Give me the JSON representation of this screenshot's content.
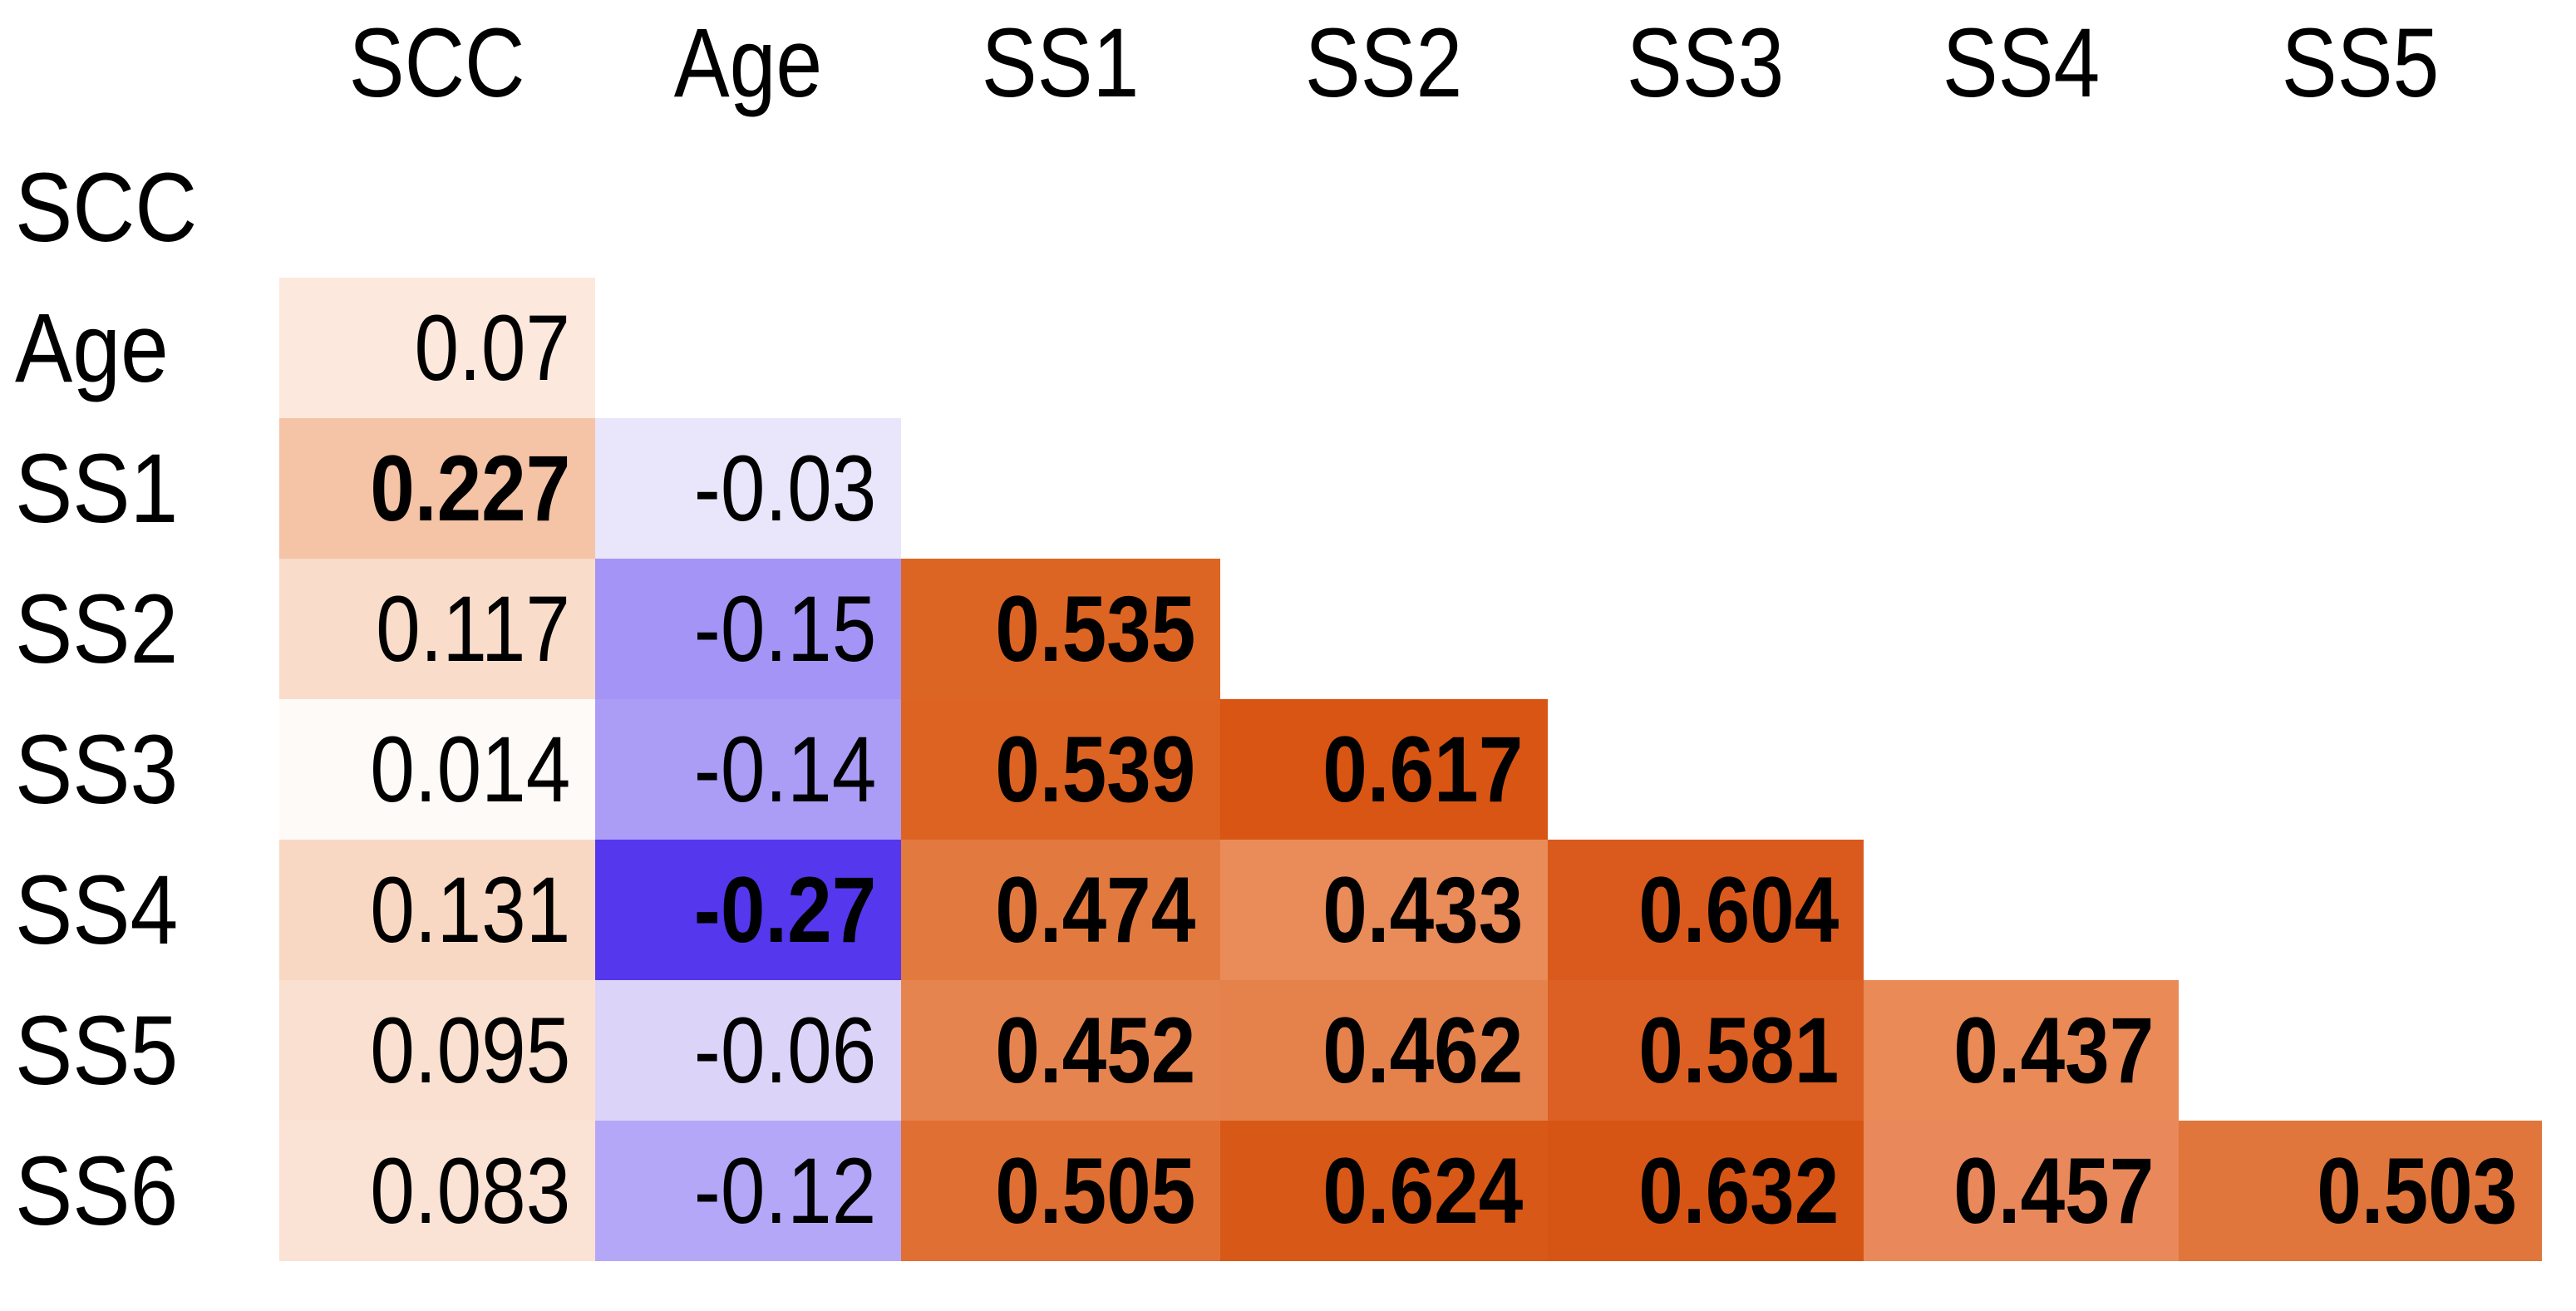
{
  "figure": {
    "background": "#ffffff",
    "text_color": "#000000"
  },
  "chart_data": {
    "type": "heatmap",
    "subtype": "correlation-matrix-lower-triangle",
    "title": "",
    "grid": false,
    "legend": false,
    "value_range": [
      -0.27,
      0.632
    ],
    "colormap": {
      "positive_strong": "#d75514",
      "negative_strong": "#5537ee",
      "neutral": "#ffffff"
    },
    "columns": [
      "SCC",
      "Age",
      "SS1",
      "SS2",
      "SS3",
      "SS4",
      "SS5"
    ],
    "rows": [
      "SCC",
      "Age",
      "SS1",
      "SS2",
      "SS3",
      "SS4",
      "SS5",
      "SS6"
    ],
    "matrix_rows": [
      {
        "label": "SCC",
        "cells": []
      },
      {
        "label": "Age",
        "cells": [
          {
            "col": "SCC",
            "display": "0.07",
            "value": 0.07,
            "bold": false,
            "bg": "#fce8dc"
          }
        ]
      },
      {
        "label": "SS1",
        "cells": [
          {
            "col": "SCC",
            "display": "0.227",
            "value": 0.227,
            "bold": true,
            "bg": "#f5c3a5"
          },
          {
            "col": "Age",
            "display": "-0.03",
            "value": -0.03,
            "bold": false,
            "bg": "#e9e5fa"
          }
        ]
      },
      {
        "label": "SS2",
        "cells": [
          {
            "col": "SCC",
            "display": "0.117",
            "value": 0.117,
            "bold": false,
            "bg": "#f9dcca"
          },
          {
            "col": "Age",
            "display": "-0.15",
            "value": -0.15,
            "bold": false,
            "bg": "#a494f5"
          },
          {
            "col": "SS1",
            "display": "0.535",
            "value": 0.535,
            "bold": true,
            "bg": "#dd6524"
          }
        ]
      },
      {
        "label": "SS3",
        "cells": [
          {
            "col": "SCC",
            "display": "0.014",
            "value": 0.014,
            "bold": false,
            "bg": "#fefaf7"
          },
          {
            "col": "Age",
            "display": "-0.14",
            "value": -0.14,
            "bold": false,
            "bg": "#ab9cf5"
          },
          {
            "col": "SS1",
            "display": "0.539",
            "value": 0.539,
            "bold": true,
            "bg": "#dc6322"
          },
          {
            "col": "SS2",
            "display": "0.617",
            "value": 0.617,
            "bold": true,
            "bg": "#d95513"
          }
        ]
      },
      {
        "label": "SS4",
        "cells": [
          {
            "col": "SCC",
            "display": "0.131",
            "value": 0.131,
            "bold": false,
            "bg": "#f8d8c3"
          },
          {
            "col": "Age",
            "display": "-0.27",
            "value": -0.27,
            "bold": true,
            "bg": "#5537ee"
          },
          {
            "col": "SS1",
            "display": "0.474",
            "value": 0.474,
            "bold": true,
            "bg": "#e27a40"
          },
          {
            "col": "SS2",
            "display": "0.433",
            "value": 0.433,
            "bold": true,
            "bg": "#e98c5a"
          },
          {
            "col": "SS3",
            "display": "0.604",
            "value": 0.604,
            "bold": true,
            "bg": "#d95a1c"
          }
        ]
      },
      {
        "label": "SS5",
        "cells": [
          {
            "col": "SCC",
            "display": "0.095",
            "value": 0.095,
            "bold": false,
            "bg": "#fae0d0"
          },
          {
            "col": "Age",
            "display": "-0.06",
            "value": -0.06,
            "bold": false,
            "bg": "#dcd4f8"
          },
          {
            "col": "SS1",
            "display": "0.452",
            "value": 0.452,
            "bold": true,
            "bg": "#e68450"
          },
          {
            "col": "SS2",
            "display": "0.462",
            "value": 0.462,
            "bold": true,
            "bg": "#e5824c"
          },
          {
            "col": "SS3",
            "display": "0.581",
            "value": 0.581,
            "bold": true,
            "bg": "#dc6023"
          },
          {
            "col": "SS4",
            "display": "0.437",
            "value": 0.437,
            "bold": true,
            "bg": "#e98a57"
          }
        ]
      },
      {
        "label": "SS6",
        "cells": [
          {
            "col": "SCC",
            "display": "0.083",
            "value": 0.083,
            "bold": false,
            "bg": "#fae2d4"
          },
          {
            "col": "Age",
            "display": "-0.12",
            "value": -0.12,
            "bold": false,
            "bg": "#b5a7f7"
          },
          {
            "col": "SS1",
            "display": "0.505",
            "value": 0.505,
            "bold": true,
            "bg": "#e06f33"
          },
          {
            "col": "SS2",
            "display": "0.624",
            "value": 0.624,
            "bold": true,
            "bg": "#d85817"
          },
          {
            "col": "SS3",
            "display": "0.632",
            "value": 0.632,
            "bold": true,
            "bg": "#d75514"
          },
          {
            "col": "SS4",
            "display": "0.457",
            "value": 0.457,
            "bold": true,
            "bg": "#e9895b"
          },
          {
            "col": "SS5",
            "display": "0.503",
            "value": 0.503,
            "bold": true,
            "bg": "#e0763c"
          }
        ]
      }
    ]
  }
}
